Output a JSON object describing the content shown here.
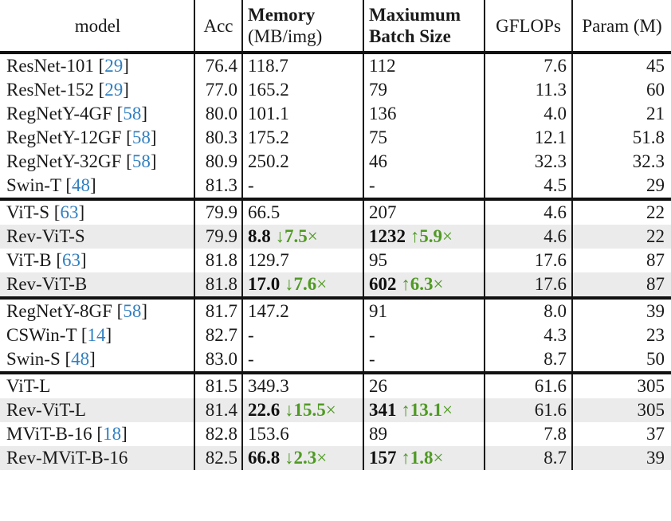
{
  "table": {
    "headers": {
      "model": "model",
      "acc": "Acc",
      "memory_title": "Memory",
      "memory_unit": "(MB/img)",
      "batch_line1": "Maxiumum",
      "batch_line2": "Batch Size",
      "gflops": "GFLOPs",
      "param": "Param (M)"
    },
    "colors": {
      "citation": "#2f7fc1",
      "improvement": "#4f9a23",
      "row_shade": "#ebebeb"
    },
    "rows": [
      {
        "name": "ResNet-101",
        "ref": "29",
        "acc": "76.4",
        "memory": "118.7",
        "memory_delta": "",
        "batch": "112",
        "batch_delta": "",
        "gflops": "7.6",
        "param": "45"
      },
      {
        "name": "ResNet-152",
        "ref": "29",
        "acc": "77.0",
        "memory": "165.2",
        "memory_delta": "",
        "batch": "79",
        "batch_delta": "",
        "gflops": "11.3",
        "param": "60"
      },
      {
        "name": "RegNetY-4GF",
        "ref": "58",
        "acc": "80.0",
        "memory": "101.1",
        "memory_delta": "",
        "batch": "136",
        "batch_delta": "",
        "gflops": "4.0",
        "param": "21"
      },
      {
        "name": "RegNetY-12GF",
        "ref": "58",
        "acc": "80.3",
        "memory": "175.2",
        "memory_delta": "",
        "batch": "75",
        "batch_delta": "",
        "gflops": "12.1",
        "param": "51.8"
      },
      {
        "name": "RegNetY-32GF",
        "ref": "58",
        "acc": "80.9",
        "memory": "250.2",
        "memory_delta": "",
        "batch": "46",
        "batch_delta": "",
        "gflops": "32.3",
        "param": "32.3"
      },
      {
        "name": "Swin-T",
        "ref": "48",
        "acc": "81.3",
        "memory": "-",
        "memory_delta": "",
        "batch": "-",
        "batch_delta": "",
        "gflops": "4.5",
        "param": "29"
      },
      {
        "name": "ViT-S",
        "ref": "63",
        "acc": "79.9",
        "memory": "66.5",
        "memory_delta": "",
        "batch": "207",
        "batch_delta": "",
        "gflops": "4.6",
        "param": "22"
      },
      {
        "name": "Rev-ViT-S",
        "ref": "",
        "acc": "79.9",
        "memory": "8.8",
        "memory_delta": "↓7.5",
        "batch": "1232",
        "batch_delta": "↑5.9",
        "gflops": "4.6",
        "param": "22"
      },
      {
        "name": "ViT-B",
        "ref": "63",
        "acc": "81.8",
        "memory": "129.7",
        "memory_delta": "",
        "batch": "95",
        "batch_delta": "",
        "gflops": "17.6",
        "param": "87"
      },
      {
        "name": "Rev-ViT-B",
        "ref": "",
        "acc": "81.8",
        "memory": "17.0",
        "memory_delta": "↓7.6",
        "batch": "602",
        "batch_delta": "↑6.3",
        "gflops": "17.6",
        "param": "87"
      },
      {
        "name": "RegNetY-8GF",
        "ref": "58",
        "acc": "81.7",
        "memory": "147.2",
        "memory_delta": "",
        "batch": "91",
        "batch_delta": "",
        "gflops": "8.0",
        "param": "39"
      },
      {
        "name": "CSWin-T",
        "ref": "14",
        "acc": "82.7",
        "memory": "-",
        "memory_delta": "",
        "batch": "-",
        "batch_delta": "",
        "gflops": "4.3",
        "param": "23"
      },
      {
        "name": "Swin-S",
        "ref": "48",
        "acc": "83.0",
        "memory": "-",
        "memory_delta": "",
        "batch": "-",
        "batch_delta": "",
        "gflops": "8.7",
        "param": "50"
      },
      {
        "name": "ViT-L",
        "ref": "",
        "acc": "81.5",
        "memory": "349.3",
        "memory_delta": "",
        "batch": "26",
        "batch_delta": "",
        "gflops": "61.6",
        "param": "305"
      },
      {
        "name": "Rev-ViT-L",
        "ref": "",
        "acc": "81.4",
        "memory": "22.6",
        "memory_delta": "↓15.5",
        "batch": "341",
        "batch_delta": "↑13.1",
        "gflops": "61.6",
        "param": "305"
      },
      {
        "name": "MViT-B-16",
        "ref": "18",
        "acc": "82.8",
        "memory": "153.6",
        "memory_delta": "",
        "batch": "89",
        "batch_delta": "",
        "gflops": "7.8",
        "param": "37"
      },
      {
        "name": "Rev-MViT-B-16",
        "ref": "",
        "acc": "82.5",
        "memory": "66.8",
        "memory_delta": "↓2.3",
        "batch": "157",
        "batch_delta": "↑1.8",
        "gflops": "8.7",
        "param": "39"
      }
    ],
    "times_symbol": "×"
  }
}
